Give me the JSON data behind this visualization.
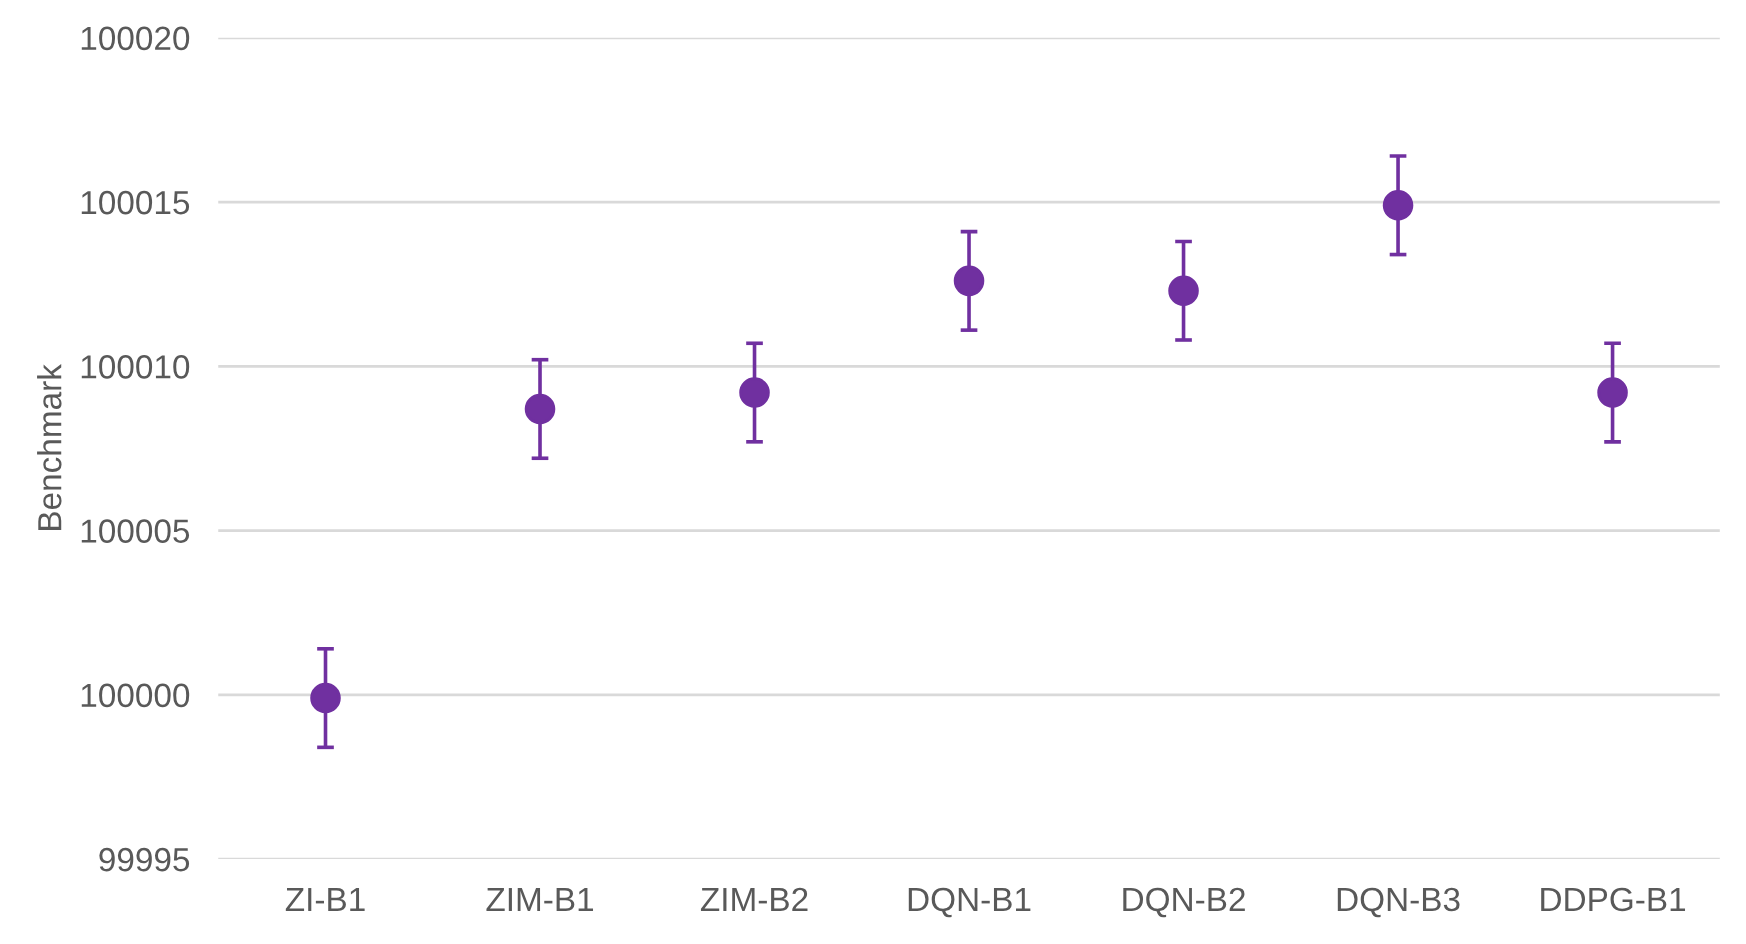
{
  "chart_data": {
    "type": "scatter",
    "ylabel": "Benchmark",
    "categories": [
      "ZI-B1",
      "ZIM-B1",
      "ZIM-B2",
      "DQN-B1",
      "DQN-B2",
      "DQN-B3",
      "DDPG-B1"
    ],
    "series": [
      {
        "color": "#7030a0",
        "values": [
          99999.9,
          100008.7,
          100009.2,
          100012.6,
          100012.3,
          100014.9,
          100009.2
        ],
        "errors": [
          1.5,
          1.5,
          1.5,
          1.5,
          1.5,
          1.5,
          1.5
        ]
      }
    ],
    "ylim": [
      99995,
      100020
    ],
    "yticks": [
      99995,
      100000,
      100005,
      100010,
      100015,
      100020
    ],
    "grid": "y",
    "marker": "circle",
    "legend": false
  }
}
